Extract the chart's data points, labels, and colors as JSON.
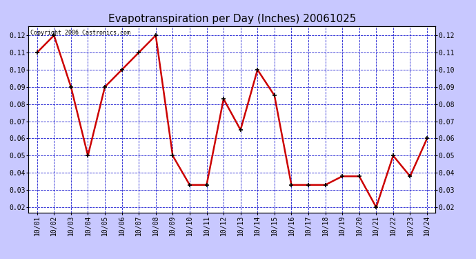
{
  "title": "Evapotranspiration per Day (Inches) 20061025",
  "copyright": "Copyright 2006 Castronics.com",
  "x_labels": [
    "10/01",
    "10/02",
    "10/03",
    "10/04",
    "10/05",
    "10/06",
    "10/07",
    "10/08",
    "10/09",
    "10/10",
    "10/11",
    "10/12",
    "10/13",
    "10/14",
    "10/15",
    "10/16",
    "10/17",
    "10/18",
    "10/19",
    "10/20",
    "10/21",
    "10/22",
    "10/23",
    "10/24"
  ],
  "y_values": [
    0.11,
    0.12,
    0.09,
    0.05,
    0.09,
    0.1,
    0.11,
    0.12,
    0.05,
    0.033,
    0.033,
    0.083,
    0.065,
    0.1,
    0.085,
    0.033,
    0.033,
    0.033,
    0.038,
    0.038,
    0.02,
    0.05,
    0.038,
    0.06
  ],
  "line_color": "#cc0000",
  "marker_color": "#000000",
  "bg_color": "#c8c8ff",
  "plot_bg_color": "#ffffff",
  "grid_color": "#0000cc",
  "title_fontsize": 11,
  "tick_fontsize": 7,
  "copyright_fontsize": 6,
  "ylim_min": 0.017,
  "ylim_max": 0.1255,
  "ytick_positions": [
    0.02,
    0.03,
    0.04,
    0.05,
    0.06,
    0.07,
    0.08,
    0.09,
    0.1,
    0.11,
    0.12
  ],
  "ytick_labels": [
    "0.02",
    "0.03",
    "0.04",
    "0.05",
    "0.06",
    "0.07",
    "0.08",
    "0.09",
    "0.10",
    "0.11",
    "0.12"
  ]
}
